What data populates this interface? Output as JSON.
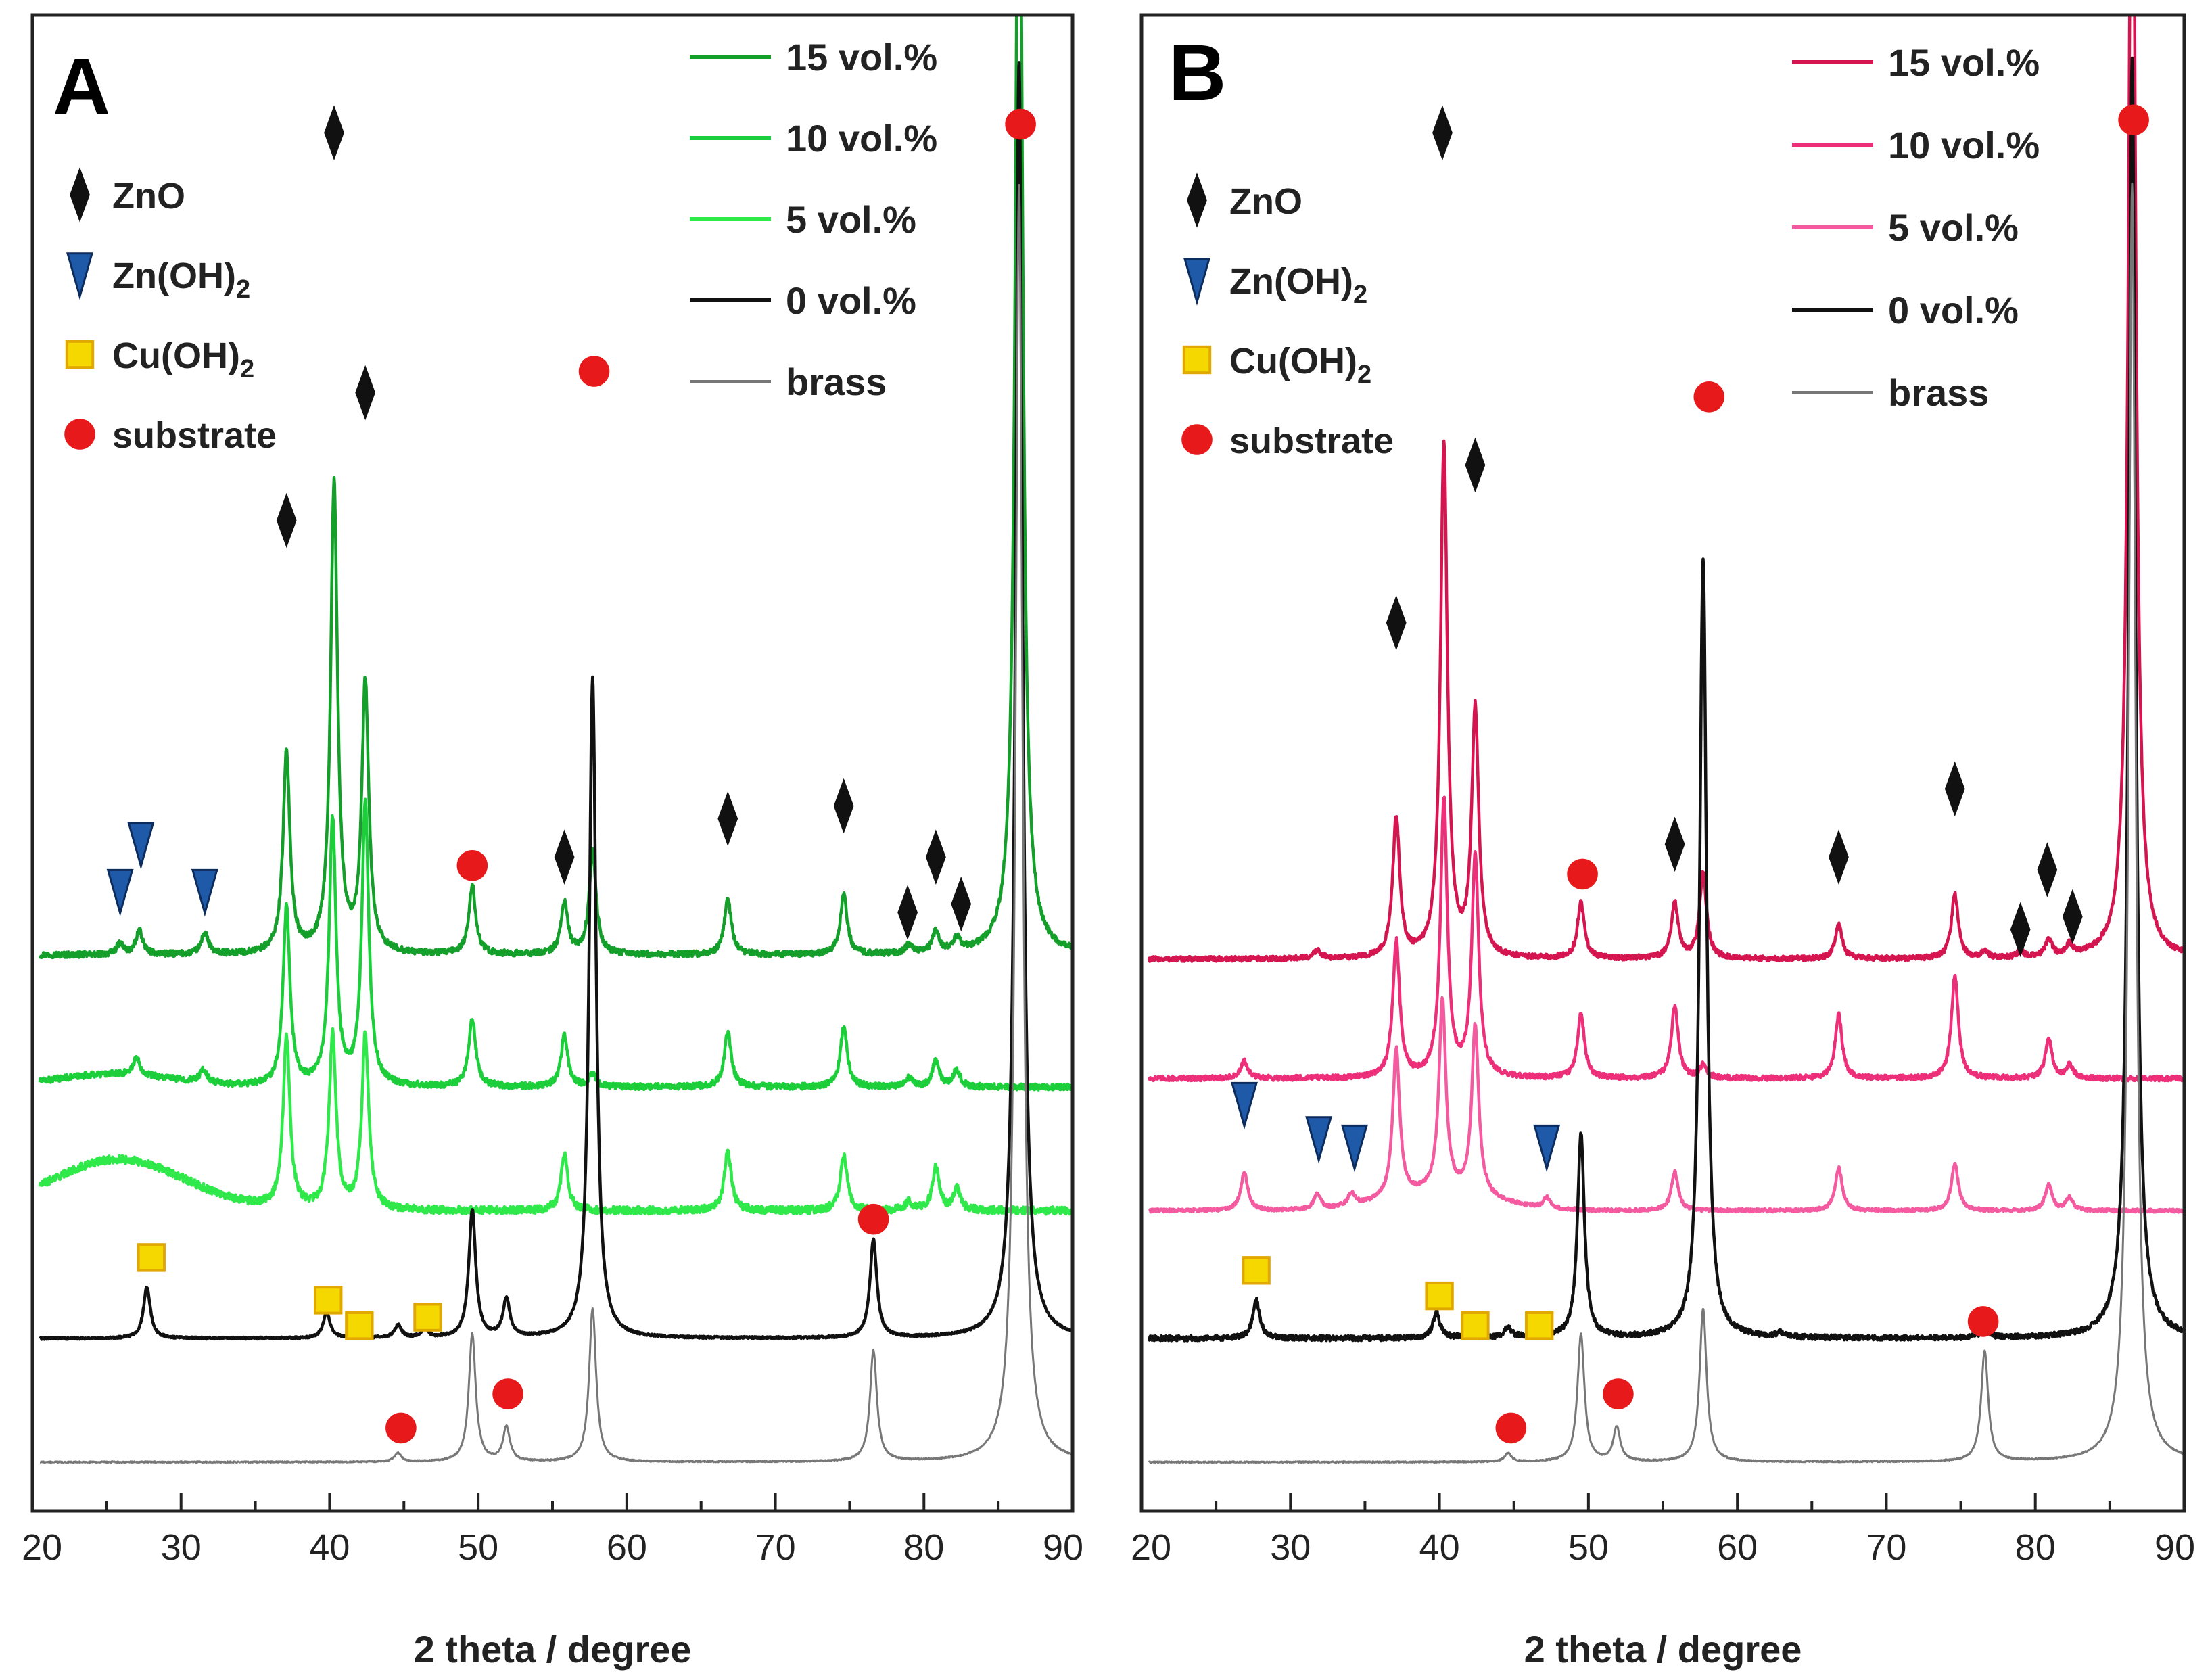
{
  "figure": {
    "x_label": "2 theta / degree",
    "markers": {
      "zno": "#111111",
      "znoh2": "#1f5aa8",
      "cuoh2": "#f5d800",
      "substrate": "#e8191a"
    }
  },
  "chart_data": [
    {
      "type": "line",
      "panel_label": "A",
      "xlabel": "2 theta / degree",
      "ylabel": "",
      "xlim": [
        20,
        90
      ],
      "x_ticks": [
        "20",
        "30",
        "40",
        "50",
        "60",
        "70",
        "80",
        "90"
      ],
      "legend": [
        {
          "label": "15 vol.%",
          "color": "#149e2a"
        },
        {
          "label": "10 vol.%",
          "color": "#1ccf3a"
        },
        {
          "label": "5 vol.%",
          "color": "#2fe84a"
        },
        {
          "label": "0 vol.%",
          "color": "#111111"
        },
        {
          "label": "brass",
          "color": "#777777"
        }
      ],
      "phase_legend": [
        {
          "marker": "zno",
          "label": "ZnO"
        },
        {
          "marker": "znoh2",
          "label": "Zn(OH)",
          "sub": "2"
        },
        {
          "marker": "cuoh2",
          "label": "Cu(OH)",
          "sub": "2"
        },
        {
          "marker": "substrate",
          "label": "substrate"
        }
      ],
      "series": [
        {
          "name": "15 vol.%",
          "color": "#149e2a",
          "baseline": 9.3,
          "noise": 0.07,
          "peaks": [
            [
              25.9,
              0.25
            ],
            [
              27.2,
              0.55
            ],
            [
              31.6,
              0.5
            ],
            [
              37.1,
              4.7
            ],
            [
              40.3,
              11.0
            ],
            [
              42.4,
              6.3
            ],
            [
              49.6,
              1.6
            ],
            [
              55.8,
              1.2
            ],
            [
              57.7,
              2.4
            ],
            [
              66.8,
              1.3
            ],
            [
              74.6,
              1.4
            ],
            [
              79.0,
              0.2
            ],
            [
              80.8,
              0.5
            ],
            [
              82.2,
              0.3
            ],
            [
              86.4,
              30
            ]
          ]
        },
        {
          "name": "10 vol.%",
          "color": "#1ccf3a",
          "baseline": 6.2,
          "noise": 0.07,
          "peaks": [
            [
              27.0,
              0.4
            ],
            [
              31.5,
              0.3
            ],
            [
              37.1,
              4.2
            ],
            [
              40.2,
              6.2
            ],
            [
              42.4,
              6.6
            ],
            [
              49.6,
              1.6
            ],
            [
              55.8,
              1.2
            ],
            [
              57.7,
              0.3
            ],
            [
              66.8,
              1.3
            ],
            [
              74.6,
              1.4
            ],
            [
              79.0,
              0.2
            ],
            [
              80.8,
              0.6
            ],
            [
              82.2,
              0.4
            ]
          ],
          "humps": [
            [
              25.5,
              0.3,
              4
            ]
          ]
        },
        {
          "name": "5 vol.%",
          "color": "#2fe84a",
          "baseline": 3.3,
          "noise": 0.09,
          "peaks": [
            [
              37.1,
              4.0
            ],
            [
              40.2,
              4.1
            ],
            [
              42.4,
              4.1
            ],
            [
              55.8,
              1.3
            ],
            [
              66.8,
              1.4
            ],
            [
              74.6,
              1.3
            ],
            [
              79.0,
              0.2
            ],
            [
              80.8,
              1.0
            ],
            [
              82.2,
              0.5
            ]
          ],
          "humps": [
            [
              25.8,
              1.2,
              4.5
            ]
          ]
        },
        {
          "name": "0 vol.%",
          "color": "#111111",
          "baseline": 0.3,
          "noise": 0.025,
          "peaks": [
            [
              27.7,
              1.2
            ],
            [
              39.8,
              0.6
            ],
            [
              41.9,
              0.15
            ],
            [
              44.6,
              0.3
            ],
            [
              46.4,
              0.2
            ],
            [
              49.6,
              3.0
            ],
            [
              51.9,
              0.9
            ],
            [
              57.7,
              15.5
            ],
            [
              76.6,
              2.3
            ],
            [
              86.4,
              30
            ]
          ]
        },
        {
          "name": "brass",
          "color": "#777777",
          "baseline": -2.6,
          "noise": 0.015,
          "peaks": [
            [
              44.6,
              0.2
            ],
            [
              49.6,
              3.0
            ],
            [
              51.9,
              0.8
            ],
            [
              57.7,
              3.6
            ],
            [
              76.6,
              2.6
            ],
            [
              86.4,
              30
            ]
          ]
        }
      ],
      "annotations": [
        {
          "marker": "zno",
          "x": 40.3,
          "y": 28.6
        },
        {
          "marker": "zno",
          "x": 37.1,
          "y": 19.5
        },
        {
          "marker": "zno",
          "x": 42.4,
          "y": 22.5
        },
        {
          "marker": "zno",
          "x": 55.8,
          "y": 11.6
        },
        {
          "marker": "zno",
          "x": 66.8,
          "y": 12.5
        },
        {
          "marker": "zno",
          "x": 74.6,
          "y": 12.8
        },
        {
          "marker": "zno",
          "x": 78.9,
          "y": 10.3
        },
        {
          "marker": "zno",
          "x": 80.8,
          "y": 11.6
        },
        {
          "marker": "zno",
          "x": 82.5,
          "y": 10.5
        },
        {
          "marker": "znoh2",
          "x": 25.9,
          "y": 10.8
        },
        {
          "marker": "znoh2",
          "x": 27.3,
          "y": 11.9
        },
        {
          "marker": "znoh2",
          "x": 31.6,
          "y": 10.8
        },
        {
          "marker": "substrate",
          "x": 86.5,
          "y": 28.8
        },
        {
          "marker": "substrate",
          "x": 57.8,
          "y": 23.0
        },
        {
          "marker": "substrate",
          "x": 49.6,
          "y": 11.4
        },
        {
          "marker": "substrate",
          "x": 76.6,
          "y": 3.1
        },
        {
          "marker": "substrate",
          "x": 52.0,
          "y": -1.0
        },
        {
          "marker": "substrate",
          "x": 44.8,
          "y": -1.8
        },
        {
          "marker": "cuoh2",
          "x": 28.0,
          "y": 2.2
        },
        {
          "marker": "cuoh2",
          "x": 39.9,
          "y": 1.2
        },
        {
          "marker": "cuoh2",
          "x": 42.0,
          "y": 0.6
        },
        {
          "marker": "cuoh2",
          "x": 46.6,
          "y": 0.8
        }
      ]
    },
    {
      "type": "line",
      "panel_label": "B",
      "xlabel": "2 theta / degree",
      "ylabel": "",
      "xlim": [
        20,
        90
      ],
      "x_ticks": [
        "20",
        "30",
        "40",
        "50",
        "60",
        "70",
        "80",
        "90"
      ],
      "legend": [
        {
          "label": "15 vol.%",
          "color": "#d4154f"
        },
        {
          "label": "10 vol.%",
          "color": "#ec2f78"
        },
        {
          "label": "5 vol.%",
          "color": "#f45aa0"
        },
        {
          "label": "0 vol.%",
          "color": "#111111"
        },
        {
          "label": "brass",
          "color": "#777777"
        }
      ],
      "phase_legend": [
        {
          "marker": "zno",
          "label": "ZnO"
        },
        {
          "marker": "znoh2",
          "label": "Zn(OH)",
          "sub": "2"
        },
        {
          "marker": "cuoh2",
          "label": "Cu(OH)",
          "sub": "2"
        },
        {
          "marker": "substrate",
          "label": "substrate"
        }
      ],
      "series": [
        {
          "name": "15 vol.%",
          "color": "#d4154f",
          "baseline": 9.2,
          "noise": 0.06,
          "peaks": [
            [
              31.8,
              0.2
            ],
            [
              37.1,
              3.3
            ],
            [
              40.3,
              12
            ],
            [
              42.4,
              5.8
            ],
            [
              49.5,
              1.3
            ],
            [
              55.8,
              1.3
            ],
            [
              57.7,
              2.0
            ],
            [
              66.8,
              0.8
            ],
            [
              74.6,
              1.5
            ],
            [
              76.6,
              0.15
            ],
            [
              79.0,
              0.15
            ],
            [
              80.9,
              0.4
            ],
            [
              82.3,
              0.25
            ],
            [
              86.5,
              30
            ]
          ]
        },
        {
          "name": "10 vol.%",
          "color": "#ec2f78",
          "baseline": 6.4,
          "noise": 0.06,
          "peaks": [
            [
              26.9,
              0.4
            ],
            [
              37.1,
              3.2
            ],
            [
              40.3,
              6.5
            ],
            [
              42.4,
              5.2
            ],
            [
              49.5,
              1.5
            ],
            [
              55.8,
              1.7
            ],
            [
              57.7,
              0.3
            ],
            [
              66.8,
              1.5
            ],
            [
              74.6,
              2.4
            ],
            [
              80.9,
              0.9
            ],
            [
              82.3,
              0.3
            ]
          ]
        },
        {
          "name": "5 vol.%",
          "color": "#f45aa0",
          "baseline": 3.3,
          "noise": 0.04,
          "peaks": [
            [
              26.9,
              0.9
            ],
            [
              31.8,
              0.35
            ],
            [
              34.1,
              0.3
            ],
            [
              37.1,
              3.5
            ],
            [
              40.2,
              4.5
            ],
            [
              42.4,
              4.0
            ],
            [
              47.2,
              0.25
            ],
            [
              55.8,
              0.9
            ],
            [
              66.8,
              1.0
            ],
            [
              74.6,
              1.1
            ],
            [
              80.9,
              0.6
            ],
            [
              82.3,
              0.3
            ]
          ],
          "humps": [
            [
              40.0,
              0.4,
              3.5
            ]
          ]
        },
        {
          "name": "0 vol.%",
          "color": "#111111",
          "baseline": 0.3,
          "noise": 0.06,
          "peaks": [
            [
              27.7,
              0.9
            ],
            [
              39.8,
              0.6
            ],
            [
              41.9,
              0.2
            ],
            [
              44.6,
              0.25
            ],
            [
              46.5,
              0.3
            ],
            [
              49.5,
              4.8
            ],
            [
              57.7,
              18.3
            ],
            [
              62.9,
              0.1
            ],
            [
              76.6,
              0.25
            ],
            [
              86.5,
              30
            ]
          ]
        },
        {
          "name": "brass",
          "color": "#777777",
          "baseline": -2.6,
          "noise": 0.015,
          "peaks": [
            [
              44.6,
              0.2
            ],
            [
              49.5,
              3.0
            ],
            [
              51.9,
              0.8
            ],
            [
              57.7,
              3.6
            ],
            [
              76.6,
              2.6
            ],
            [
              86.5,
              30
            ]
          ]
        }
      ],
      "annotations": [
        {
          "marker": "zno",
          "x": 40.2,
          "y": 28.6
        },
        {
          "marker": "zno",
          "x": 37.1,
          "y": 17.1
        },
        {
          "marker": "zno",
          "x": 42.4,
          "y": 20.8
        },
        {
          "marker": "zno",
          "x": 55.8,
          "y": 11.9
        },
        {
          "marker": "zno",
          "x": 66.8,
          "y": 11.6
        },
        {
          "marker": "zno",
          "x": 74.6,
          "y": 13.2
        },
        {
          "marker": "zno",
          "x": 79.0,
          "y": 9.9
        },
        {
          "marker": "zno",
          "x": 80.8,
          "y": 11.3
        },
        {
          "marker": "zno",
          "x": 82.5,
          "y": 10.2
        },
        {
          "marker": "znoh2",
          "x": 26.9,
          "y": 5.8
        },
        {
          "marker": "znoh2",
          "x": 31.9,
          "y": 5.0
        },
        {
          "marker": "znoh2",
          "x": 34.3,
          "y": 4.8
        },
        {
          "marker": "znoh2",
          "x": 47.2,
          "y": 4.8
        },
        {
          "marker": "substrate",
          "x": 86.6,
          "y": 28.9
        },
        {
          "marker": "substrate",
          "x": 58.1,
          "y": 22.4
        },
        {
          "marker": "substrate",
          "x": 49.6,
          "y": 11.2
        },
        {
          "marker": "substrate",
          "x": 76.5,
          "y": 0.7
        },
        {
          "marker": "substrate",
          "x": 52.0,
          "y": -1.0
        },
        {
          "marker": "substrate",
          "x": 44.8,
          "y": -1.8
        },
        {
          "marker": "cuoh2",
          "x": 27.7,
          "y": 1.9
        },
        {
          "marker": "cuoh2",
          "x": 40.0,
          "y": 1.3
        },
        {
          "marker": "cuoh2",
          "x": 42.4,
          "y": 0.6
        },
        {
          "marker": "cuoh2",
          "x": 46.7,
          "y": 0.6
        }
      ]
    }
  ]
}
